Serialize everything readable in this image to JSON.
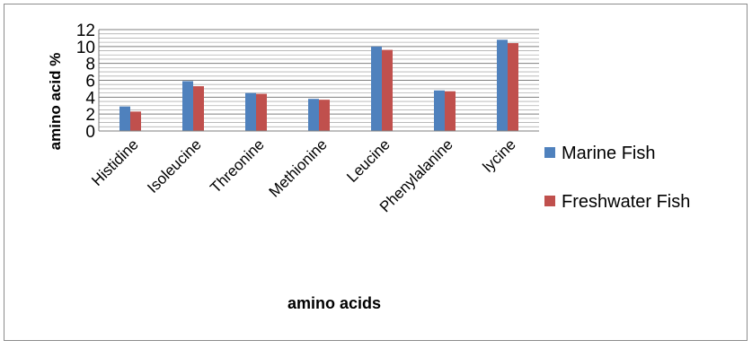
{
  "chart_data": {
    "type": "bar",
    "title": "",
    "xlabel": "amino acids",
    "ylabel": "amino acid %",
    "ylim": [
      0,
      12
    ],
    "yticks": [
      0,
      2,
      4,
      6,
      8,
      10,
      12
    ],
    "grid": true,
    "legend_position": "right",
    "categories": [
      "Histidine",
      "Isoleucine",
      "Threonine",
      "Methionine",
      "Leucine",
      "Phenylalanine",
      "lycine"
    ],
    "series": [
      {
        "name": "Marine Fish",
        "color": "#4F81BD",
        "values": [
          2.9,
          5.9,
          4.5,
          3.8,
          10.0,
          4.8,
          10.8
        ]
      },
      {
        "name": "Freshwater Fish",
        "color": "#C0504D",
        "values": [
          2.3,
          5.3,
          4.4,
          3.7,
          9.6,
          4.7,
          10.4
        ]
      }
    ]
  }
}
